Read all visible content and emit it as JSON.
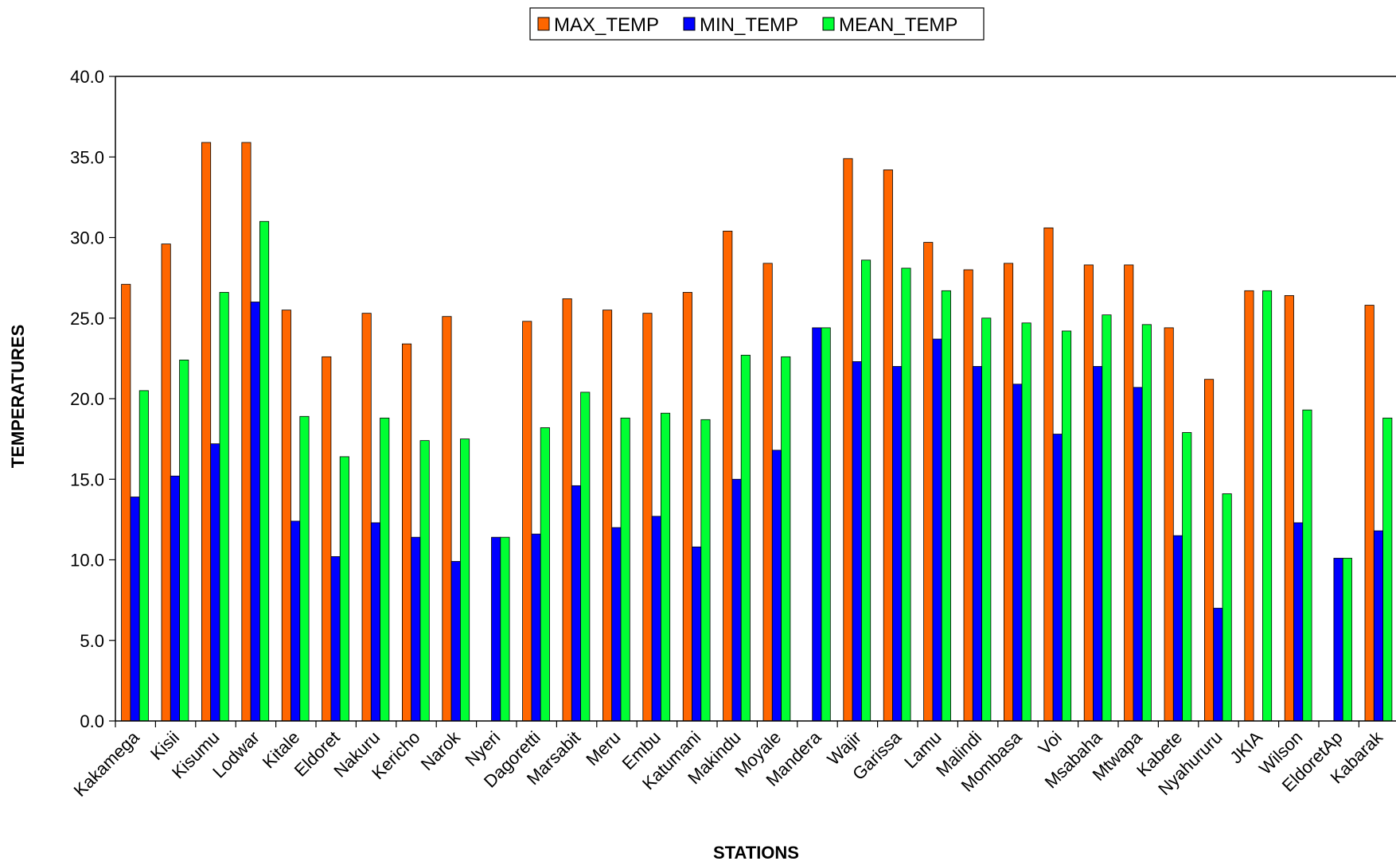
{
  "chart_data": {
    "type": "bar",
    "xlabel": "STATIONS",
    "ylabel": "TEMPERATURES",
    "ylim": [
      0,
      40
    ],
    "yticks": [
      "0.0",
      "5.0",
      "10.0",
      "15.0",
      "20.0",
      "25.0",
      "30.0",
      "35.0",
      "40.0"
    ],
    "grid": false,
    "legend_position": "top",
    "categories": [
      "Kakamega",
      "Kisii",
      "Kisumu",
      "Lodwar",
      "Kitale",
      "Eldoret",
      "Nakuru",
      "Kericho",
      "Narok",
      "Nyeri",
      "Dagoretti",
      "Marsabit",
      "Meru",
      "Embu",
      "Katumani",
      "Makindu",
      "Moyale",
      "Mandera",
      "Wajir",
      "Garissa",
      "Lamu",
      "Malindi",
      "Mombasa",
      "Voi",
      "Msabaha",
      "Mtwapa",
      "Kabete",
      "Nyahururu",
      "JKIA",
      "Wilson",
      "EldoretAp",
      "Kabarak"
    ],
    "series": [
      {
        "name": "MAX_TEMP",
        "color": "#FF6600",
        "values": [
          27.1,
          29.6,
          35.9,
          35.9,
          25.5,
          22.6,
          25.3,
          23.4,
          25.1,
          null,
          24.8,
          26.2,
          25.5,
          25.3,
          26.6,
          30.4,
          28.4,
          null,
          34.9,
          34.2,
          29.7,
          28.0,
          28.4,
          30.6,
          28.3,
          28.3,
          24.4,
          21.2,
          26.7,
          26.4,
          null,
          25.8
        ]
      },
      {
        "name": "MIN_TEMP",
        "color": "#0000FF",
        "values": [
          13.9,
          15.2,
          17.2,
          26.0,
          12.4,
          10.2,
          12.3,
          11.4,
          9.9,
          11.4,
          11.6,
          14.6,
          12.0,
          12.7,
          10.8,
          15.0,
          16.8,
          24.4,
          22.3,
          22.0,
          23.7,
          22.0,
          20.9,
          17.8,
          22.0,
          20.7,
          11.5,
          7.0,
          null,
          12.3,
          10.1,
          11.8
        ]
      },
      {
        "name": "MEAN_TEMP",
        "color": "#00FF33",
        "values": [
          20.5,
          22.4,
          26.6,
          31.0,
          18.9,
          16.4,
          18.8,
          17.4,
          17.5,
          11.4,
          18.2,
          20.4,
          18.8,
          19.1,
          18.7,
          22.7,
          22.6,
          24.4,
          28.6,
          28.1,
          26.7,
          25.0,
          24.7,
          24.2,
          25.2,
          24.6,
          17.9,
          14.1,
          26.7,
          19.3,
          10.1,
          18.8
        ]
      }
    ]
  }
}
